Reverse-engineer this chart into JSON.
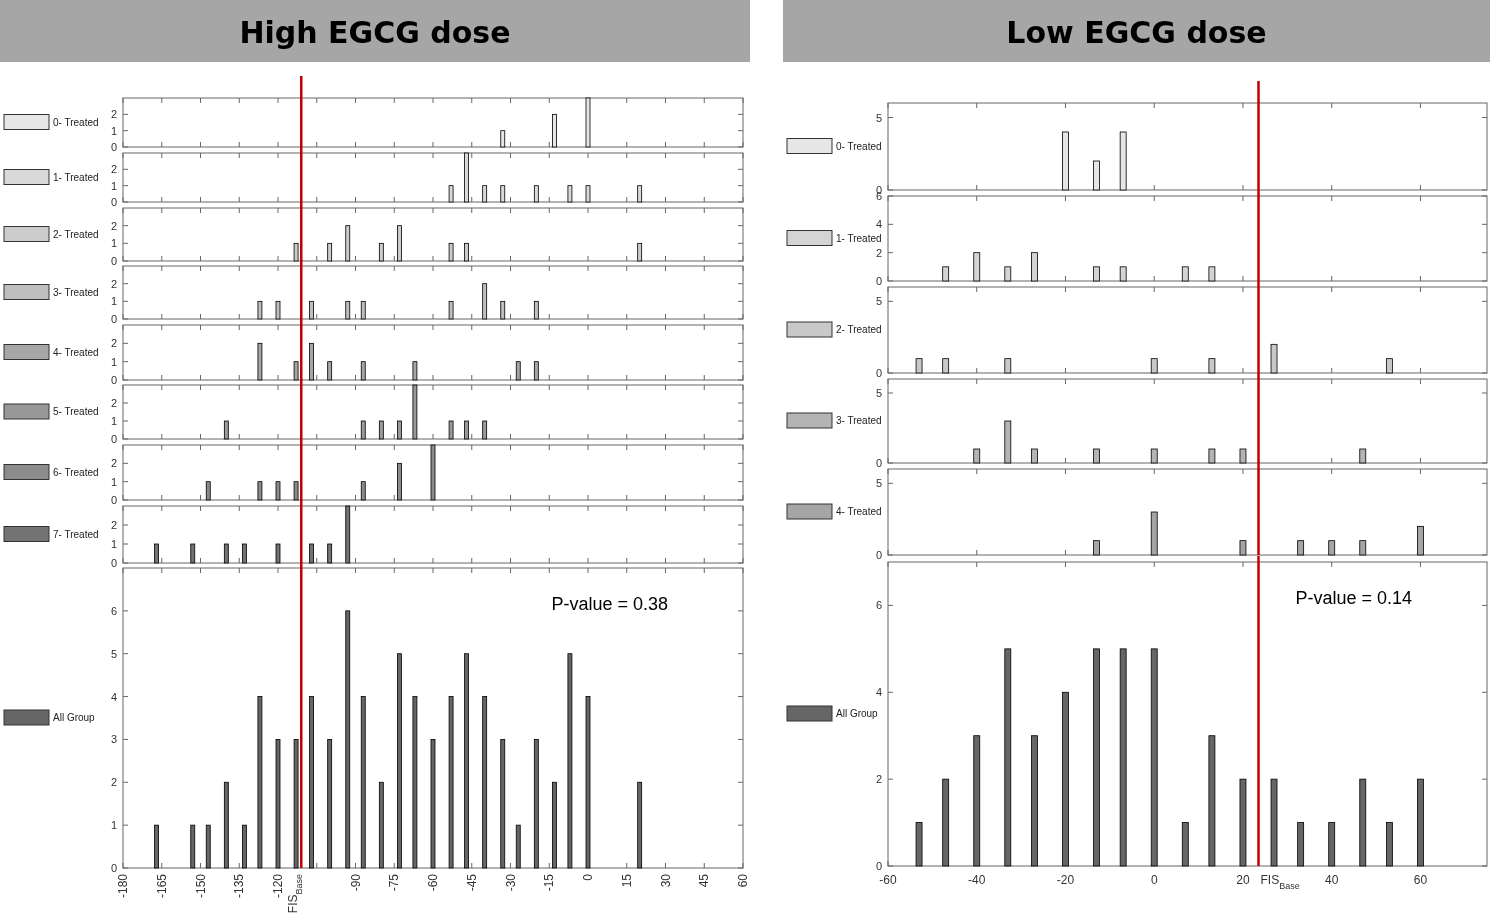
{
  "chart_data": [
    {
      "type": "bar",
      "title": "High EGCG dose",
      "x": [
        -33,
        -13,
        0
      ],
      "series": [
        {
          "name": "0- Treated",
          "color": "#e6e6e6",
          "values": [
            1,
            2,
            3
          ]
        }
      ],
      "xlim": [
        -180,
        60
      ],
      "ylim": [
        0,
        3
      ],
      "yticks": [
        0,
        1,
        2
      ],
      "xticks": [
        -180,
        -165,
        -150,
        -135,
        -120,
        -105,
        -90,
        -75,
        -60,
        -45,
        -30,
        -15,
        0,
        15,
        30,
        45,
        60
      ],
      "tick_labels": "y",
      "legend": "left",
      "ref_lines": [
        {
          "axis": "x",
          "value": -111,
          "color": "#c00000"
        }
      ]
    },
    {
      "type": "bar",
      "x": [
        -53,
        -47,
        -40,
        -33,
        -20,
        -7,
        0,
        20
      ],
      "series": [
        {
          "name": "1- Treated",
          "color": "#d9d9d9",
          "values": [
            1,
            3,
            1,
            1,
            1,
            1,
            1,
            1
          ]
        }
      ],
      "xlim": [
        -180,
        60
      ],
      "ylim": [
        0,
        3
      ],
      "yticks": [
        0,
        1,
        2
      ],
      "xticks": [
        -180,
        -165,
        -150,
        -135,
        -120,
        -105,
        -90,
        -75,
        -60,
        -45,
        -30,
        -15,
        0,
        15,
        30,
        45,
        60
      ],
      "tick_labels": "y",
      "legend": "left",
      "ref_lines": [
        {
          "axis": "x",
          "value": -111,
          "color": "#c00000"
        }
      ]
    },
    {
      "type": "bar",
      "x": [
        -113,
        -100,
        -93,
        -80,
        -73,
        -53,
        -47,
        20
      ],
      "series": [
        {
          "name": "2- Treated",
          "color": "#cccccc",
          "values": [
            1,
            1,
            2,
            1,
            2,
            1,
            1,
            1
          ]
        }
      ],
      "xlim": [
        -180,
        60
      ],
      "ylim": [
        0,
        3
      ],
      "yticks": [
        0,
        1,
        2
      ],
      "xticks": [
        -180,
        -165,
        -150,
        -135,
        -120,
        -105,
        -90,
        -75,
        -60,
        -45,
        -30,
        -15,
        0,
        15,
        30,
        45,
        60
      ],
      "tick_labels": "y",
      "legend": "left",
      "ref_lines": [
        {
          "axis": "x",
          "value": -111,
          "color": "#c00000"
        }
      ]
    },
    {
      "type": "bar",
      "x": [
        -127,
        -120,
        -107,
        -93,
        -87,
        -53,
        -40,
        -33,
        -20
      ],
      "series": [
        {
          "name": "3- Treated",
          "color": "#bfbfbf",
          "values": [
            1,
            1,
            1,
            1,
            1,
            1,
            2,
            1,
            1
          ]
        }
      ],
      "xlim": [
        -180,
        60
      ],
      "ylim": [
        0,
        3
      ],
      "yticks": [
        0,
        1,
        2
      ],
      "xticks": [
        -180,
        -165,
        -150,
        -135,
        -120,
        -105,
        -90,
        -75,
        -60,
        -45,
        -30,
        -15,
        0,
        15,
        30,
        45,
        60
      ],
      "tick_labels": "y",
      "legend": "left",
      "ref_lines": [
        {
          "axis": "x",
          "value": -111,
          "color": "#c00000"
        }
      ]
    },
    {
      "type": "bar",
      "x": [
        -127,
        -113,
        -107,
        -100,
        -87,
        -67,
        -27,
        -20
      ],
      "series": [
        {
          "name": "4- Treated",
          "color": "#a6a6a6",
          "values": [
            2,
            1,
            2,
            1,
            1,
            1,
            1,
            1
          ]
        }
      ],
      "xlim": [
        -180,
        60
      ],
      "ylim": [
        0,
        3
      ],
      "yticks": [
        0,
        1,
        2
      ],
      "xticks": [
        -180,
        -165,
        -150,
        -135,
        -120,
        -105,
        -90,
        -75,
        -60,
        -45,
        -30,
        -15,
        0,
        15,
        30,
        45,
        60
      ],
      "tick_labels": "y",
      "legend": "left",
      "ref_lines": [
        {
          "axis": "x",
          "value": -111,
          "color": "#c00000"
        }
      ]
    },
    {
      "type": "bar",
      "x": [
        -140,
        -87,
        -80,
        -73,
        -67,
        -53,
        -47,
        -40
      ],
      "series": [
        {
          "name": "5- Treated",
          "color": "#999999",
          "values": [
            1,
            1,
            1,
            1,
            3,
            1,
            1,
            1
          ]
        }
      ],
      "xlim": [
        -180,
        60
      ],
      "ylim": [
        0,
        3
      ],
      "yticks": [
        0,
        1,
        2
      ],
      "xticks": [
        -180,
        -165,
        -150,
        -135,
        -120,
        -105,
        -90,
        -75,
        -60,
        -45,
        -30,
        -15,
        0,
        15,
        30,
        45,
        60
      ],
      "tick_labels": "y",
      "legend": "left",
      "ref_lines": [
        {
          "axis": "x",
          "value": -111,
          "color": "#c00000"
        }
      ]
    },
    {
      "type": "bar",
      "x": [
        -147,
        -127,
        -120,
        -113,
        -87,
        -73,
        -60
      ],
      "series": [
        {
          "name": "6- Treated",
          "color": "#8c8c8c",
          "values": [
            1,
            1,
            1,
            1,
            1,
            2,
            3
          ]
        }
      ],
      "xlim": [
        -180,
        60
      ],
      "ylim": [
        0,
        3
      ],
      "yticks": [
        0,
        1,
        2
      ],
      "xticks": [
        -180,
        -165,
        -150,
        -135,
        -120,
        -105,
        -90,
        -75,
        -60,
        -45,
        -30,
        -15,
        0,
        15,
        30,
        45,
        60
      ],
      "tick_labels": "y",
      "legend": "left",
      "ref_lines": [
        {
          "axis": "x",
          "value": -111,
          "color": "#c00000"
        }
      ]
    },
    {
      "type": "bar",
      "x": [
        -167,
        -153,
        -140,
        -133,
        -120,
        -107,
        -100,
        -93
      ],
      "series": [
        {
          "name": "7- Treated",
          "color": "#737373",
          "values": [
            1,
            1,
            1,
            1,
            1,
            1,
            1,
            3
          ]
        }
      ],
      "xlim": [
        -180,
        60
      ],
      "ylim": [
        0,
        3
      ],
      "yticks": [
        0,
        1,
        2
      ],
      "xticks": [
        -180,
        -165,
        -150,
        -135,
        -120,
        -105,
        -90,
        -75,
        -60,
        -45,
        -30,
        -15,
        0,
        15,
        30,
        45,
        60
      ],
      "tick_labels": "y",
      "legend": "left",
      "ref_lines": [
        {
          "axis": "x",
          "value": -111,
          "color": "#c00000"
        }
      ]
    },
    {
      "type": "bar",
      "x": [
        -167,
        -153,
        -147,
        -140,
        -133,
        -127,
        -120,
        -113,
        -107,
        -100,
        -93,
        -87,
        -80,
        -73,
        -67,
        -60,
        -53,
        -47,
        -40,
        -33,
        -27,
        -20,
        -13,
        -7,
        0,
        20
      ],
      "series": [
        {
          "name": "All Group",
          "color": "#666666",
          "values": [
            1,
            1,
            1,
            2,
            1,
            4,
            3,
            3,
            4,
            3,
            6,
            4,
            2,
            5,
            4,
            3,
            4,
            5,
            4,
            3,
            1,
            3,
            2,
            5,
            4,
            2
          ]
        }
      ],
      "xlim": [
        -180,
        60
      ],
      "ylim": [
        0,
        7
      ],
      "yticks": [
        0,
        1,
        2,
        3,
        4,
        5,
        6
      ],
      "xticks": [
        -180,
        -165,
        -150,
        -135,
        -120,
        {
          "value": -105,
          "label": null
        },
        -90,
        -75,
        -60,
        -45,
        -30,
        -15,
        0,
        15,
        30,
        45,
        60
      ],
      "legend": "left",
      "ref_lines": [
        {
          "axis": "x",
          "value": -111,
          "label": "FIS$_{Base}$",
          "color": "#c00000"
        }
      ],
      "annotations": [
        "P-value = 0.38"
      ]
    },
    {
      "type": "bar",
      "title": "Low EGCG dose",
      "x": [
        -20,
        -13,
        -7
      ],
      "series": [
        {
          "name": "0- Treated",
          "color": "#e6e6e6",
          "values": [
            4,
            2,
            4
          ]
        }
      ],
      "xlim": [
        -60,
        75
      ],
      "ylim": [
        0,
        6
      ],
      "yticks": [
        0,
        5
      ],
      "xticks": [
        -60,
        -40,
        -20,
        0,
        20,
        40,
        60
      ],
      "tick_labels": "y",
      "legend": "left",
      "ref_lines": [
        {
          "axis": "x",
          "value": 23.5,
          "color": "#c00000"
        }
      ]
    },
    {
      "type": "bar",
      "x": [
        -47,
        -40,
        -33,
        -27,
        -13,
        -7,
        7,
        13
      ],
      "series": [
        {
          "name": "1- Treated",
          "color": "#d4d4d4",
          "values": [
            1,
            2,
            1,
            2,
            1,
            1,
            1,
            1
          ]
        }
      ],
      "xlim": [
        -60,
        75
      ],
      "ylim": [
        0,
        6
      ],
      "yticks": [
        0,
        2,
        4,
        6
      ],
      "xticks": [
        -60,
        -40,
        -20,
        0,
        20,
        40,
        60
      ],
      "tick_labels": "y",
      "legend": "left",
      "ref_lines": [
        {
          "axis": "x",
          "value": 23.5,
          "color": "#c00000"
        }
      ]
    },
    {
      "type": "bar",
      "x": [
        -53,
        -47,
        -33,
        0,
        13,
        27,
        53
      ],
      "series": [
        {
          "name": "2- Treated",
          "color": "#c8c8c8",
          "values": [
            1,
            1,
            1,
            1,
            1,
            2,
            1
          ]
        }
      ],
      "xlim": [
        -60,
        75
      ],
      "ylim": [
        0,
        6
      ],
      "yticks": [
        0,
        5
      ],
      "xticks": [
        -60,
        -40,
        -20,
        0,
        20,
        40,
        60
      ],
      "tick_labels": "y",
      "legend": "left",
      "ref_lines": [
        {
          "axis": "x",
          "value": 23.5,
          "color": "#c00000"
        }
      ]
    },
    {
      "type": "bar",
      "x": [
        -40,
        -33,
        -27,
        -13,
        0,
        13,
        20,
        47
      ],
      "series": [
        {
          "name": "3- Treated",
          "color": "#b4b4b4",
          "values": [
            1,
            3,
            1,
            1,
            1,
            1,
            1,
            1
          ]
        }
      ],
      "xlim": [
        -60,
        75
      ],
      "ylim": [
        0,
        6
      ],
      "yticks": [
        0,
        5
      ],
      "xticks": [
        -60,
        -40,
        -20,
        0,
        20,
        40,
        60
      ],
      "tick_labels": "y",
      "legend": "left",
      "ref_lines": [
        {
          "axis": "x",
          "value": 23.5,
          "color": "#c00000"
        }
      ]
    },
    {
      "type": "bar",
      "x": [
        -13,
        0,
        20,
        33,
        40,
        47,
        60
      ],
      "series": [
        {
          "name": "4- Treated",
          "color": "#a5a5a5",
          "values": [
            1,
            3,
            1,
            1,
            1,
            1,
            2
          ]
        }
      ],
      "xlim": [
        -60,
        75
      ],
      "ylim": [
        0,
        6
      ],
      "yticks": [
        0,
        5
      ],
      "xticks": [
        -60,
        -40,
        -20,
        0,
        20,
        40,
        60
      ],
      "tick_labels": "y",
      "legend": "left",
      "ref_lines": [
        {
          "axis": "x",
          "value": 23.5,
          "color": "#c00000"
        }
      ]
    },
    {
      "type": "bar",
      "x": [
        -53,
        -47,
        -40,
        -33,
        -27,
        -20,
        -13,
        -7,
        0,
        7,
        13,
        20,
        27,
        33,
        40,
        47,
        53,
        60
      ],
      "series": [
        {
          "name": "All Group",
          "color": "#666666",
          "values": [
            1,
            2,
            3,
            5,
            3,
            4,
            5,
            5,
            5,
            1,
            3,
            2,
            2,
            1,
            1,
            2,
            1,
            2
          ]
        }
      ],
      "xlim": [
        -60,
        75
      ],
      "ylim": [
        0,
        7
      ],
      "yticks": [
        0,
        2,
        4,
        6
      ],
      "xticks": [
        -60,
        -40,
        -20,
        0,
        20,
        40,
        60
      ],
      "legend": "left",
      "ref_lines": [
        {
          "axis": "x",
          "value": 23.5,
          "label": "FIS$_{Base}$",
          "color": "#c00000"
        }
      ],
      "annotations": [
        "P-value = 0.14"
      ]
    }
  ]
}
